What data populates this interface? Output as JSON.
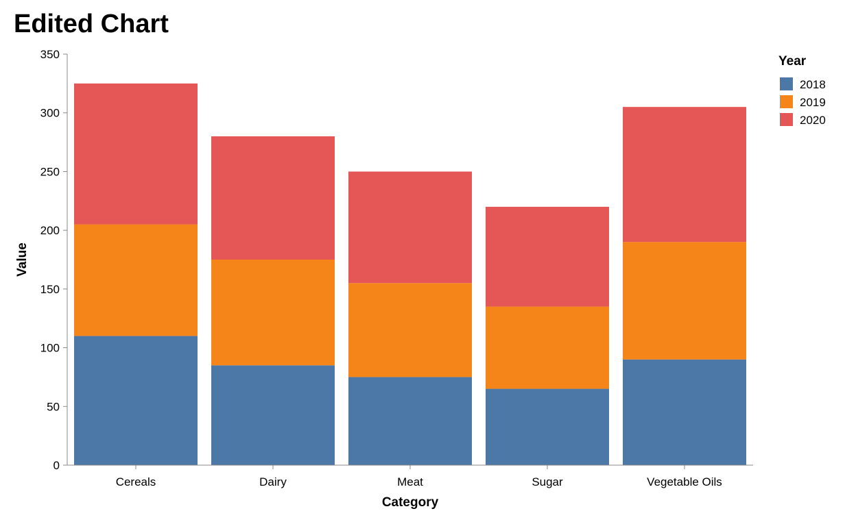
{
  "chart_data": {
    "type": "bar",
    "stacked": true,
    "title": "Edited Chart",
    "xlabel": "Category",
    "ylabel": "Value",
    "categories": [
      "Cereals",
      "Dairy",
      "Meat",
      "Sugar",
      "Vegetable Oils"
    ],
    "series": [
      {
        "name": "2018",
        "color": "#4c78a8",
        "values": [
          110,
          85,
          75,
          65,
          90
        ]
      },
      {
        "name": "2019",
        "color": "#f58518",
        "values": [
          95,
          90,
          80,
          70,
          100
        ]
      },
      {
        "name": "2020",
        "color": "#e45756",
        "values": [
          120,
          105,
          95,
          85,
          115
        ]
      }
    ],
    "ylim": [
      0,
      350
    ],
    "yticks": [
      "0",
      "50",
      "100",
      "150",
      "200",
      "250",
      "300",
      "350"
    ],
    "grid": false,
    "legend": {
      "title": "Year",
      "position": "right"
    }
  }
}
